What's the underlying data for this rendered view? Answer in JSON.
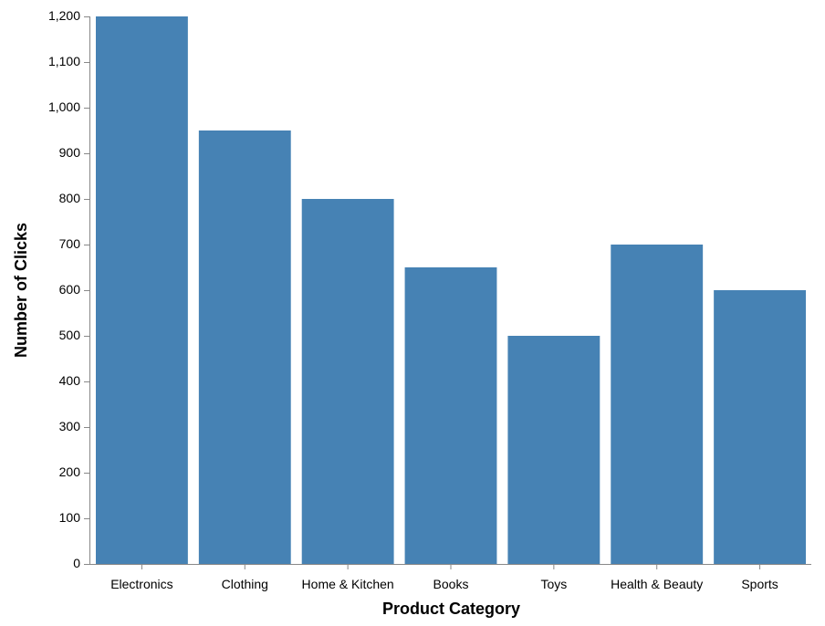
{
  "chart_data": {
    "type": "bar",
    "title": "",
    "xlabel": "Product Category",
    "ylabel": "Number of Clicks",
    "categories": [
      "Electronics",
      "Clothing",
      "Home & Kitchen",
      "Books",
      "Toys",
      "Health & Beauty",
      "Sports"
    ],
    "values": [
      1200,
      950,
      800,
      650,
      500,
      700,
      600
    ],
    "ylim": [
      0,
      1200
    ],
    "yticks": [
      0,
      100,
      200,
      300,
      400,
      500,
      600,
      700,
      800,
      900,
      1000,
      1100,
      1200
    ],
    "ytick_labels": [
      "0",
      "100",
      "200",
      "300",
      "400",
      "500",
      "600",
      "700",
      "800",
      "900",
      "1,000",
      "1,100",
      "1,200"
    ],
    "grid": false,
    "colors": {
      "bar": "#4682b4",
      "axis": "#888888"
    }
  }
}
